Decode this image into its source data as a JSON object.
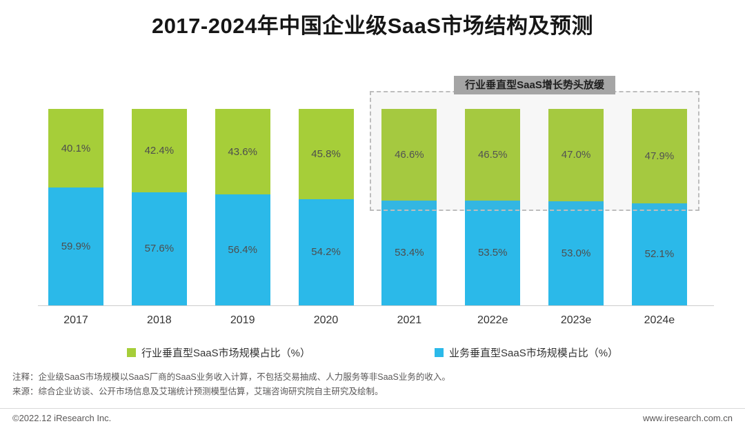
{
  "title": "2017-2024年中国企业级SaaS市场结构及预测",
  "annotation": {
    "label": "行业垂直型SaaS增长势头放缓"
  },
  "chart_data": {
    "type": "bar",
    "stacked": true,
    "title": "2017-2024年中国企业级SaaS市场结构及预测",
    "categories": [
      "2017",
      "2018",
      "2019",
      "2020",
      "2021",
      "2022e",
      "2023e",
      "2024e"
    ],
    "series": [
      {
        "name": "业务垂直型SaaS市场规模占比（%）",
        "color": "#2bb9e9",
        "values": [
          59.9,
          57.6,
          56.4,
          54.2,
          53.4,
          53.5,
          53.0,
          52.1
        ]
      },
      {
        "name": "行业垂直型SaaS市场规模占比（%）",
        "color": "#a6ce39",
        "values": [
          40.1,
          42.4,
          43.6,
          45.8,
          46.6,
          46.5,
          47.0,
          47.9
        ]
      }
    ],
    "ylim": [
      0,
      100
    ],
    "value_label_format": "{value}%",
    "annotation": "行业垂直型SaaS增长势头放缓",
    "annotation_span": [
      "2021",
      "2024e"
    ],
    "grid": false,
    "legend_position": "bottom"
  },
  "legend": [
    {
      "label": "行业垂直型SaaS市场规模占比（%）",
      "color": "#a6ce39"
    },
    {
      "label": "业务垂直型SaaS市场规模占比（%）",
      "color": "#2bb9e9"
    }
  ],
  "notes": {
    "line1": "注释：企业级SaaS市场规模以SaaS厂商的SaaS业务收入计算，不包括交易抽成、人力服务等非SaaS业务的收入。",
    "line2": "来源：综合企业访谈、公开市场信息及艾瑞统计预测模型估算，艾瑞咨询研究院自主研究及绘制。"
  },
  "footer": {
    "left": "©2022.12 iResearch Inc.",
    "right": "www.iresearch.com.cn"
  }
}
